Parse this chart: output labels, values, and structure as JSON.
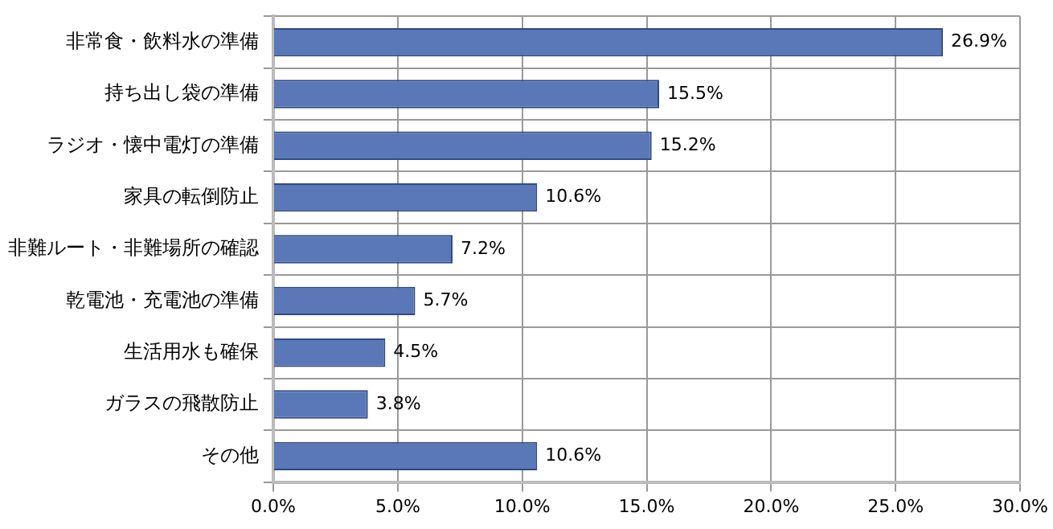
{
  "chart_data": {
    "type": "bar",
    "orientation": "horizontal",
    "categories": [
      "非常食・飲料水の準備",
      "持ち出し袋の準備",
      "ラジオ・懐中電灯の準備",
      "家具の転倒防止",
      "非難ルート・非難場所の確認",
      "乾電池・充電池の準備",
      "生活用水も確保",
      "ガラスの飛散防止",
      "その他"
    ],
    "values": [
      26.9,
      15.5,
      15.2,
      10.6,
      7.2,
      5.7,
      4.5,
      3.8,
      10.6
    ],
    "value_labels": [
      "26.9%",
      "15.5%",
      "15.2%",
      "10.6%",
      "7.2%",
      "5.7%",
      "4.5%",
      "3.8%",
      "10.6%"
    ],
    "color": "#5a78b8",
    "xlim": [
      0,
      30
    ],
    "xticks": [
      {
        "value": 0,
        "label": "0.0%"
      },
      {
        "value": 5,
        "label": "5.0%"
      },
      {
        "value": 10,
        "label": "10.0%"
      },
      {
        "value": 15,
        "label": "15.0%"
      },
      {
        "value": 20,
        "label": "20.0%"
      },
      {
        "value": 25,
        "label": "25.0%"
      },
      {
        "value": 30,
        "label": "30.0%"
      }
    ],
    "grid": true,
    "legend": false
  }
}
